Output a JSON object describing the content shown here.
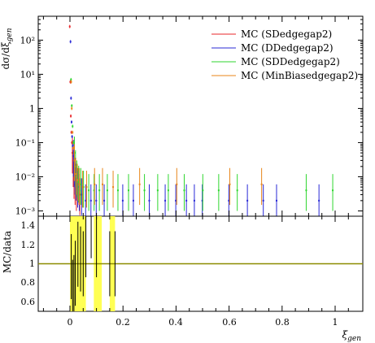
{
  "chart_data": [
    {
      "type": "scatter",
      "panel": "main",
      "ylabel": "dσ/dξgen",
      "yscale": "log",
      "ylim": [
        0.0007,
        500
      ],
      "xlim": [
        -0.12,
        1.1
      ],
      "yticks": [
        {
          "value": 0.001,
          "label": "10⁻³"
        },
        {
          "value": 0.01,
          "label": "10⁻²"
        },
        {
          "value": 0.1,
          "label": "10⁻¹"
        },
        {
          "value": 1,
          "label": "1"
        },
        {
          "value": 10,
          "label": "10¹"
        },
        {
          "value": 100,
          "label": "10²"
        }
      ],
      "legend_position": "top-right",
      "series": [
        {
          "name": "MC (SDedgegap2)",
          "color": "#e8262a",
          "points": [
            [
              0.002,
              250
            ],
            [
              0.004,
              6
            ],
            [
              0.006,
              0.6
            ],
            [
              0.008,
              0.2
            ],
            [
              0.01,
              0.1
            ],
            [
              0.012,
              0.05
            ],
            [
              0.015,
              0.02
            ],
            [
              0.018,
              0.009
            ],
            [
              0.022,
              0.006
            ],
            [
              0.027,
              0.004
            ],
            [
              0.033,
              0.006
            ],
            [
              0.04,
              0.003
            ]
          ]
        },
        {
          "name": "MC (DDedgegap2)",
          "color": "#2929d6",
          "points": [
            [
              0.003,
              90
            ],
            [
              0.005,
              2
            ],
            [
              0.007,
              0.4
            ],
            [
              0.009,
              0.15
            ],
            [
              0.011,
              0.08
            ],
            [
              0.014,
              0.04
            ],
            [
              0.017,
              0.02
            ],
            [
              0.02,
              0.012
            ],
            [
              0.024,
              0.008
            ],
            [
              0.03,
              0.005
            ],
            [
              0.036,
              0.004
            ],
            [
              0.045,
              0.003
            ],
            [
              0.06,
              0.002
            ],
            [
              0.08,
              0.002
            ],
            [
              0.1,
              0.002
            ],
            [
              0.13,
              0.002
            ],
            [
              0.2,
              0.002
            ],
            [
              0.24,
              0.002
            ],
            [
              0.3,
              0.002
            ],
            [
              0.36,
              0.002
            ],
            [
              0.4,
              0.002
            ],
            [
              0.44,
              0.002
            ],
            [
              0.47,
              0.002
            ],
            [
              0.5,
              0.002
            ],
            [
              0.6,
              0.002
            ],
            [
              0.67,
              0.002
            ],
            [
              0.73,
              0.002
            ],
            [
              0.78,
              0.002
            ],
            [
              0.94,
              0.002
            ]
          ]
        },
        {
          "name": "MC (SDDedgegap2)",
          "color": "#2fd62f",
          "points": [
            [
              0.003,
              7
            ],
            [
              0.006,
              1.2
            ],
            [
              0.009,
              0.3
            ],
            [
              0.012,
              0.1
            ],
            [
              0.016,
              0.05
            ],
            [
              0.02,
              0.02
            ],
            [
              0.025,
              0.01
            ],
            [
              0.032,
              0.007
            ],
            [
              0.04,
              0.006
            ],
            [
              0.05,
              0.005
            ],
            [
              0.07,
              0.004
            ],
            [
              0.09,
              0.004
            ],
            [
              0.11,
              0.004
            ],
            [
              0.14,
              0.004
            ],
            [
              0.18,
              0.004
            ],
            [
              0.22,
              0.004
            ],
            [
              0.28,
              0.004
            ],
            [
              0.33,
              0.004
            ],
            [
              0.37,
              0.004
            ],
            [
              0.43,
              0.004
            ],
            [
              0.5,
              0.004
            ],
            [
              0.56,
              0.004
            ],
            [
              0.63,
              0.004
            ],
            [
              0.89,
              0.004
            ],
            [
              0.99,
              0.004
            ]
          ]
        },
        {
          "name": "MC (MinBiasedgegap2)",
          "color": "#e8861a",
          "points": [
            [
              0.002,
              6
            ],
            [
              0.004,
              1
            ],
            [
              0.007,
              0.2
            ],
            [
              0.01,
              0.07
            ],
            [
              0.014,
              0.03
            ],
            [
              0.019,
              0.012
            ],
            [
              0.025,
              0.008
            ],
            [
              0.033,
              0.006
            ],
            [
              0.045,
              0.005
            ],
            [
              0.06,
              0.005
            ],
            [
              0.09,
              0.006
            ],
            [
              0.12,
              0.006
            ],
            [
              0.16,
              0.005
            ],
            [
              0.26,
              0.006
            ],
            [
              0.4,
              0.006
            ],
            [
              0.6,
              0.006
            ],
            [
              0.72,
              0.006
            ]
          ]
        }
      ]
    },
    {
      "type": "scatter",
      "panel": "ratio",
      "ylabel": "MC/data",
      "xlabel": "ξgen",
      "ylim": [
        0.5,
        1.5
      ],
      "xlim": [
        -0.12,
        1.1
      ],
      "yticks": [
        0.6,
        0.8,
        1,
        1.2,
        1.4
      ],
      "xticks": [
        0,
        0.2,
        0.4,
        0.6,
        0.8,
        1
      ],
      "reference_line": 1,
      "reference_color": "#8c8c00",
      "band_color": "#ffff40",
      "points": [
        [
          0.005,
          0.97
        ],
        [
          0.01,
          0.7
        ],
        [
          0.015,
          0.75
        ],
        [
          0.02,
          0.9
        ],
        [
          0.03,
          1.1
        ],
        [
          0.04,
          1.05
        ],
        [
          0.05,
          1.0
        ],
        [
          0.06,
          1.2
        ],
        [
          0.08,
          1.4
        ],
        [
          0.1,
          1.2
        ],
        [
          0.15,
          1.0
        ],
        [
          0.17,
          1.0
        ]
      ]
    }
  ],
  "texts": {
    "tick_0": "0",
    "tick_02": "0.2",
    "tick_04": "0.4",
    "tick_06": "0.6",
    "tick_08": "0.8",
    "tick_1": "1",
    "r_tick_06": "0.6",
    "r_tick_08": "0.8",
    "r_tick_1": "1",
    "r_tick_12": "1.2",
    "r_tick_14": "1.4",
    "legend_1": "MC (SDedgegap2)",
    "legend_2": "MC (DDedgegap2)",
    "legend_3": "MC (SDDedgegap2)",
    "legend_4": "MC (MinBiasedgegap2)"
  }
}
